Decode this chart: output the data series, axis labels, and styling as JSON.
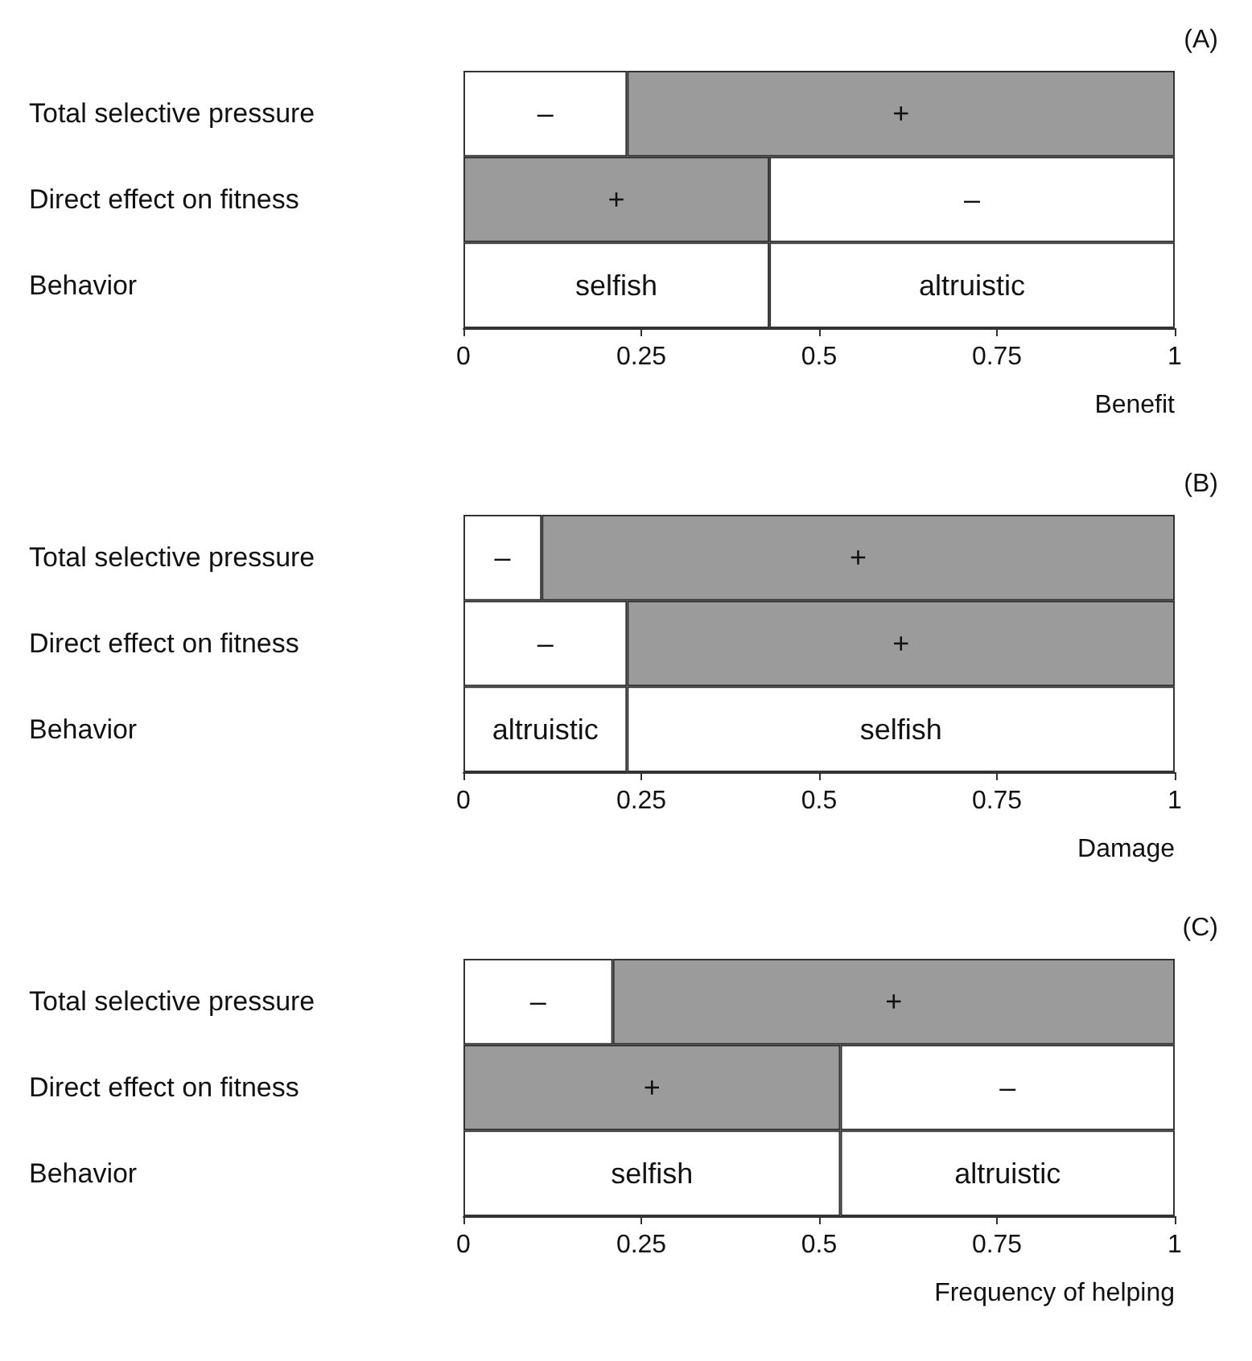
{
  "chart_data": [
    {
      "type": "bar",
      "title": "(A)",
      "xlabel": "Benefit",
      "orientation": "horizontal",
      "stacked": true,
      "categories": [
        "Total selective pressure",
        "Direct effect on fitness",
        "Behavior"
      ],
      "xlim": [
        0,
        1
      ],
      "xticks": [
        0,
        0.25,
        0.5,
        0.75,
        1
      ],
      "series": [
        {
          "values": [
            0.23,
            0.43,
            0.43
          ],
          "colors": [
            "#ffffff",
            "#9b9b9b",
            "#ffffff"
          ],
          "value_labels": [
            "–",
            "+",
            "selfish"
          ]
        },
        {
          "values": [
            0.77,
            0.57,
            0.57
          ],
          "colors": [
            "#9b9b9b",
            "#ffffff",
            "#ffffff"
          ],
          "value_labels": [
            "+",
            "–",
            "altruistic"
          ]
        }
      ]
    },
    {
      "type": "bar",
      "title": "(B)",
      "xlabel": "Damage",
      "orientation": "horizontal",
      "stacked": true,
      "categories": [
        "Total selective pressure",
        "Direct effect on fitness",
        "Behavior"
      ],
      "xlim": [
        0,
        1
      ],
      "xticks": [
        0,
        0.25,
        0.5,
        0.75,
        1
      ],
      "series": [
        {
          "values": [
            0.11,
            0.23,
            0.23
          ],
          "colors": [
            "#ffffff",
            "#ffffff",
            "#ffffff"
          ],
          "value_labels": [
            "–",
            "–",
            "altruistic"
          ]
        },
        {
          "values": [
            0.89,
            0.77,
            0.77
          ],
          "colors": [
            "#9b9b9b",
            "#9b9b9b",
            "#ffffff"
          ],
          "value_labels": [
            "+",
            "+",
            "selfish"
          ]
        }
      ]
    },
    {
      "type": "bar",
      "title": "(C)",
      "xlabel": "Frequency of helping",
      "orientation": "horizontal",
      "stacked": true,
      "categories": [
        "Total selective pressure",
        "Direct effect on fitness",
        "Behavior"
      ],
      "xlim": [
        0,
        1
      ],
      "xticks": [
        0,
        0.25,
        0.5,
        0.75,
        1
      ],
      "series": [
        {
          "values": [
            0.21,
            0.53,
            0.53
          ],
          "colors": [
            "#ffffff",
            "#9b9b9b",
            "#ffffff"
          ],
          "value_labels": [
            "–",
            "+",
            "selfish"
          ]
        },
        {
          "values": [
            0.79,
            0.47,
            0.47
          ],
          "colors": [
            "#9b9b9b",
            "#ffffff",
            "#ffffff"
          ],
          "value_labels": [
            "+",
            "–",
            "altruistic"
          ]
        }
      ]
    }
  ]
}
